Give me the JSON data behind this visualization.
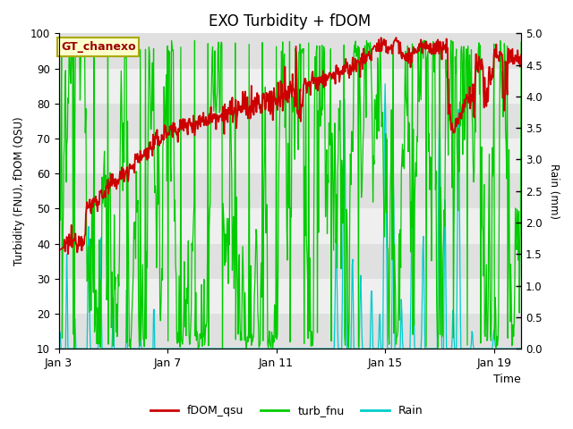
{
  "title": "EXO Turbidity + fDOM",
  "ylabel_left": "Turbidity (FNU), fDOM (QSU)",
  "ylabel_right": "Rain (mm)",
  "xlabel": "Time",
  "ylim_left": [
    10,
    100
  ],
  "ylim_right": [
    0.0,
    5.0
  ],
  "yticks_left": [
    10,
    20,
    30,
    40,
    50,
    60,
    70,
    80,
    90,
    100
  ],
  "yticks_right": [
    0.0,
    0.5,
    1.0,
    1.5,
    2.0,
    2.5,
    3.0,
    3.5,
    4.0,
    4.5,
    5.0
  ],
  "xtick_labels": [
    "Jan 3",
    "Jan 7",
    "Jan 11",
    "Jan 15",
    "Jan 19"
  ],
  "xtick_pos": [
    0,
    4,
    8,
    12,
    16
  ],
  "annotation_text": "GT_chanexo",
  "annotation_facecolor": "#ffffcc",
  "annotation_edgecolor": "#aaaa00",
  "bg_color": "#ffffff",
  "band_colors": [
    "#e8e8e8",
    "#f0f0f0"
  ],
  "colors": {
    "fDOM_qsu": "#cc0000",
    "turb_fnu": "#00cc00",
    "Rain": "#00cccc"
  },
  "legend_entries": [
    "fDOM_qsu",
    "turb_fnu",
    "Rain"
  ],
  "title_fontsize": 12,
  "figsize": [
    6.4,
    4.8
  ],
  "dpi": 100
}
